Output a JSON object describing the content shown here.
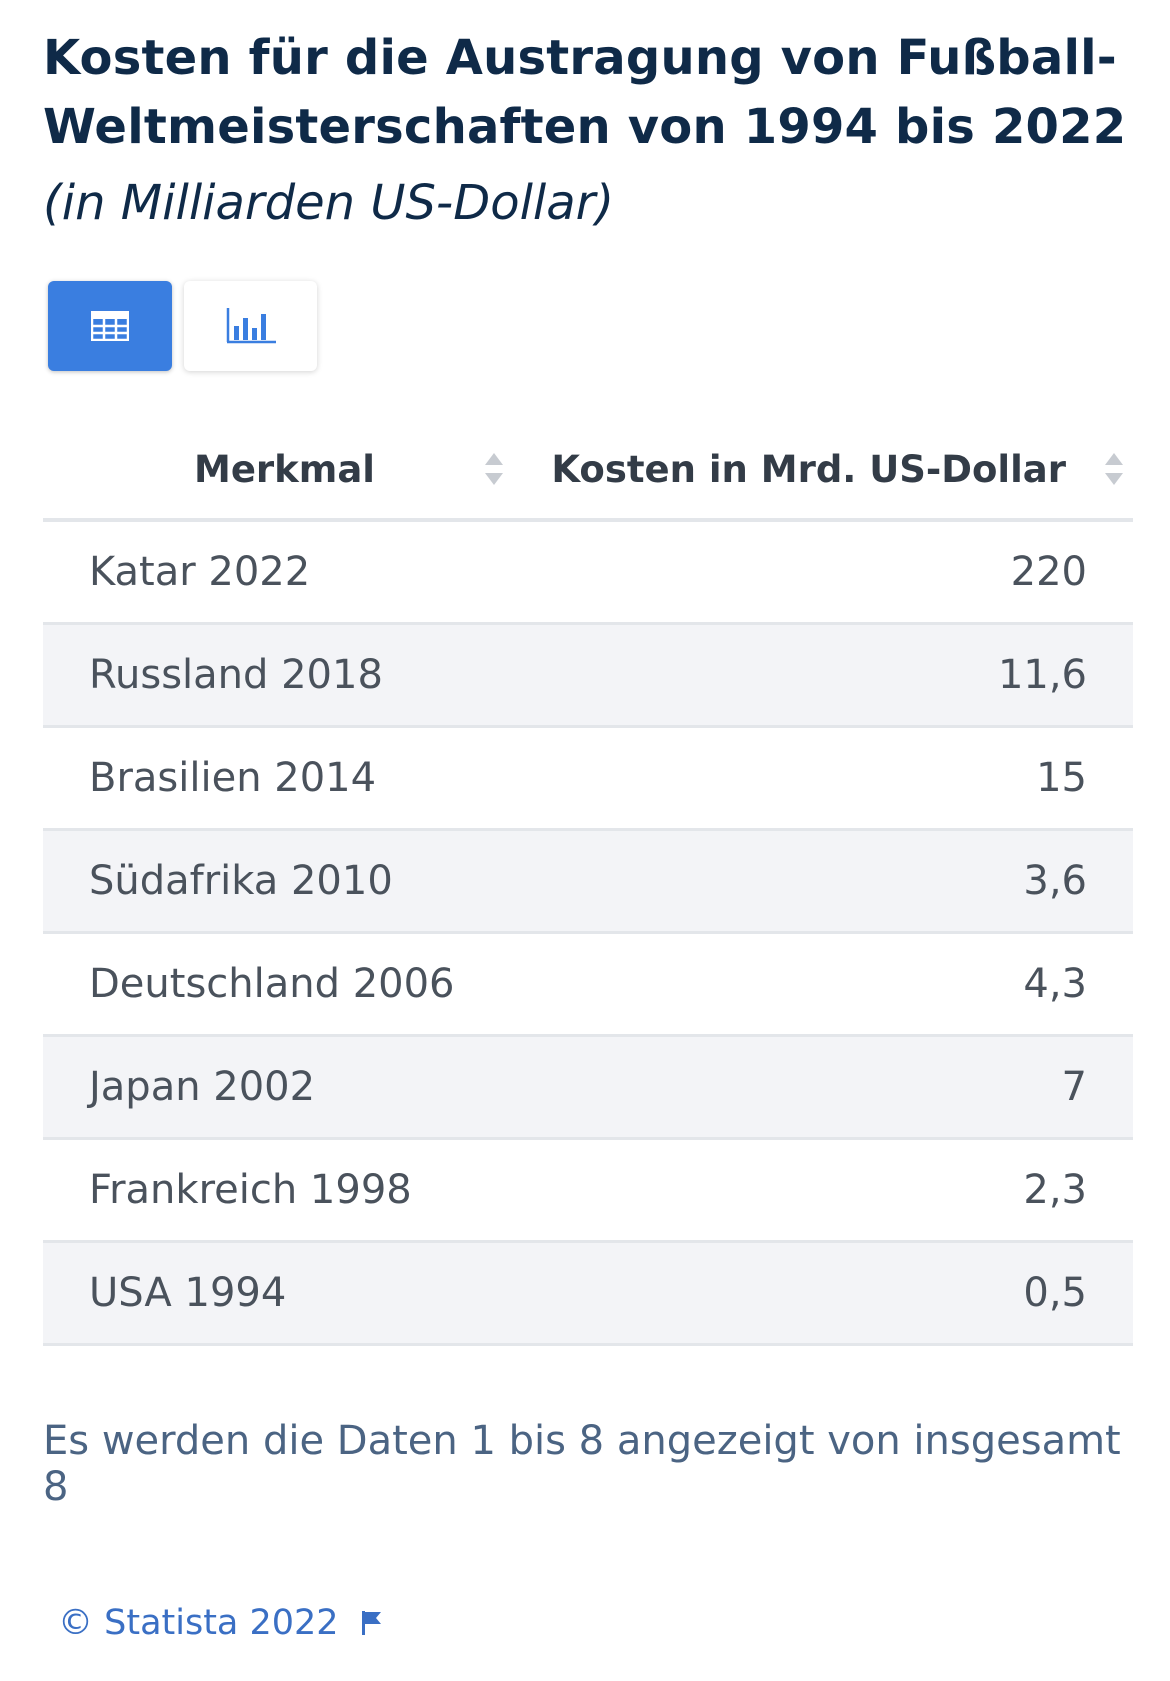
{
  "title": "Kosten für die Austragung von Fußball-Weltmeisterschaften von 1994 bis 2022",
  "subtitle": "(in Milliarden US-Dollar)",
  "view_toggle": {
    "table_icon": "table-grid-icon",
    "chart_icon": "bar-chart-icon",
    "active": "table",
    "active_color": "#3a7ee0"
  },
  "table": {
    "columns": [
      "Merkmal",
      "Kosten in Mrd. US-Dollar"
    ],
    "rows": [
      {
        "label": "Katar 2022",
        "value": "220"
      },
      {
        "label": "Russland 2018",
        "value": "11,6"
      },
      {
        "label": "Brasilien 2014",
        "value": "15"
      },
      {
        "label": "Südafrika 2010",
        "value": "3,6"
      },
      {
        "label": "Deutschland 2006",
        "value": "4,3"
      },
      {
        "label": "Japan 2002",
        "value": "7"
      },
      {
        "label": "Frankreich 1998",
        "value": "2,3"
      },
      {
        "label": "USA 1994",
        "value": "0,5"
      }
    ]
  },
  "info_text": "Es werden die Daten 1 bis 8 angezeigt von insgesamt 8",
  "footer": {
    "copyright": "© Statista 2022",
    "flag_icon": "flag-icon"
  }
}
